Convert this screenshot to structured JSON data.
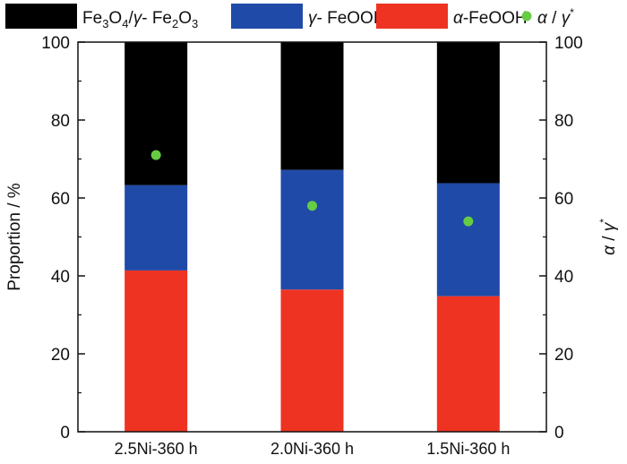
{
  "chart_data": {
    "type": "bar",
    "stacked": true,
    "categories": [
      "2.5Ni-360 h",
      "2.0Ni-360 h",
      "1.5Ni-360 h"
    ],
    "series": [
      {
        "name": "α-FeOOH",
        "values": [
          41.4,
          36.5,
          34.8
        ],
        "color": "#ee3322"
      },
      {
        "name": "γ- FeOOH",
        "values": [
          21.9,
          30.7,
          29.0
        ],
        "color": "#1f4aa8"
      },
      {
        "name": "Fe3O4/γ- Fe2O3",
        "values": [
          36.7,
          32.8,
          36.2
        ],
        "color": "#000000"
      }
    ],
    "ratio_series": {
      "name": "α / γ*",
      "values": [
        71,
        58,
        54
      ],
      "color": "#66cc44"
    },
    "ylabel": "Proportion / %",
    "y2label": "α / γ*",
    "ylim": [
      0,
      100
    ],
    "y2lim": [
      0,
      100
    ],
    "yticks": [
      0,
      20,
      40,
      60,
      80,
      100
    ],
    "legend_position": "top",
    "grid": false
  }
}
